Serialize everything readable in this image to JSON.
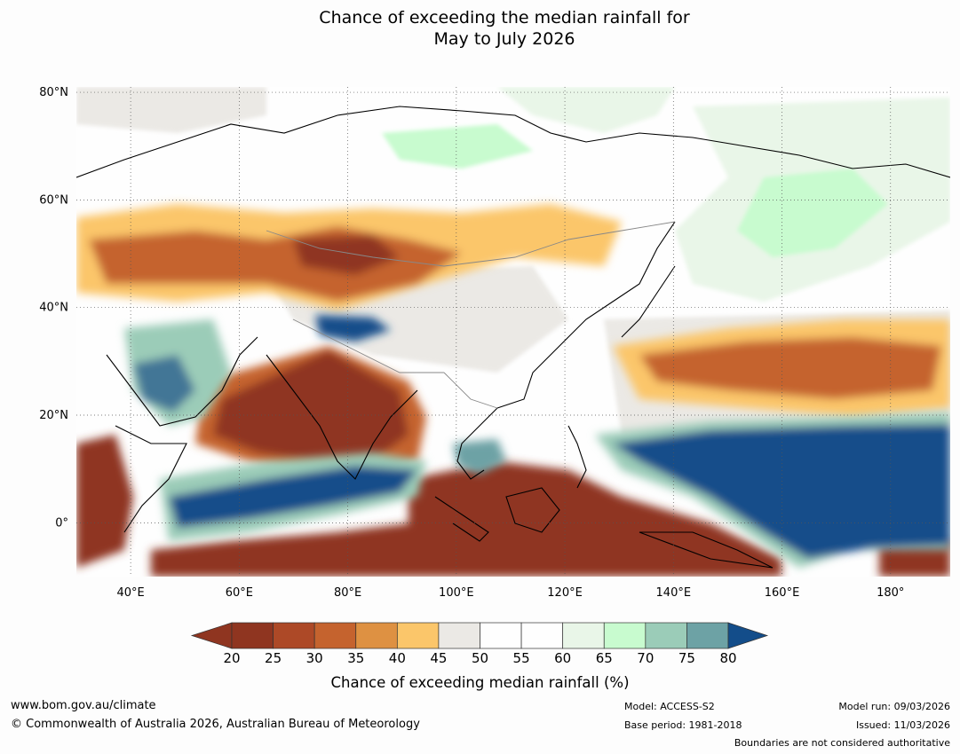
{
  "title": {
    "line1": "Chance of exceeding the median rainfall for",
    "line2": "May to July 2026"
  },
  "map": {
    "region": "Asia / Indian Ocean / Western Pacific",
    "lat_labels": [
      "80°N",
      "60°N",
      "40°N",
      "20°N",
      "0°"
    ],
    "lon_labels": [
      "40°E",
      "60°E",
      "80°E",
      "100°E",
      "120°E",
      "140°E",
      "160°E",
      "180°"
    ],
    "lat_values": [
      80,
      60,
      40,
      20,
      0
    ],
    "lon_values": [
      40,
      60,
      80,
      100,
      120,
      140,
      160,
      180
    ],
    "extent": {
      "lon_min": 30,
      "lon_max": 191,
      "lat_min": -10,
      "lat_max": 81
    }
  },
  "colorbar": {
    "ticks": [
      "20",
      "25",
      "30",
      "35",
      "40",
      "45",
      "50",
      "55",
      "60",
      "65",
      "70",
      "75",
      "80"
    ],
    "colors": [
      "#8f3520",
      "#ad4927",
      "#c5632e",
      "#de9142",
      "#fbc66a",
      "#ebe9e5",
      "#fefefe",
      "#fefefe",
      "#e9f6e8",
      "#c8fbcf",
      "#9bccb8",
      "#6da2a5",
      "#427696"
    ],
    "under_color": "#8f3520",
    "over_color": "#134d8a",
    "label": "Chance of exceeding median rainfall (%)"
  },
  "colors": {
    "dry_strong": "#8f3520",
    "dry": "#c5632e",
    "dry_mild": "#fbc66a",
    "neutral": "#ebe9e5",
    "wet_mild": "#c8fbcf",
    "wet": "#6da2a5",
    "wet_strong": "#134d8a"
  },
  "footer": {
    "website": "www.bom.gov.au/climate",
    "copyright": "© Commonwealth of Australia 2026, Australian Bureau of Meteorology",
    "model": "Model: ACCESS-S2",
    "base_period": "Base period: 1981-2018",
    "model_run": "Model run: 09/03/2026",
    "issued": "Issued: 11/03/2026",
    "disclaimer": "Boundaries are not considered authoritative"
  }
}
